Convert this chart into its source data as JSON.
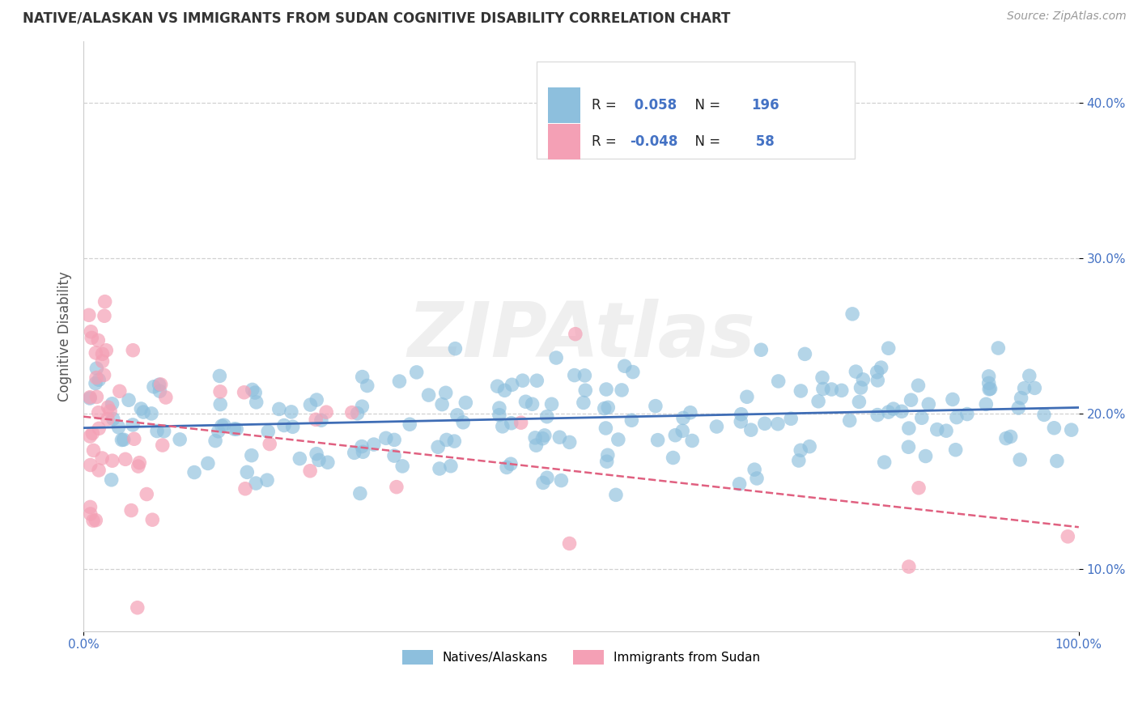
{
  "title": "NATIVE/ALASKAN VS IMMIGRANTS FROM SUDAN COGNITIVE DISABILITY CORRELATION CHART",
  "source": "Source: ZipAtlas.com",
  "ylabel": "Cognitive Disability",
  "xlim": [
    0.0,
    1.0
  ],
  "ylim": [
    0.06,
    0.44
  ],
  "yticks": [
    0.1,
    0.2,
    0.3,
    0.4
  ],
  "ytick_labels": [
    "10.0%",
    "20.0%",
    "30.0%",
    "40.0%"
  ],
  "xtick_labels": [
    "0.0%",
    "100.0%"
  ],
  "native_color": "#8DBFDD",
  "native_color_line": "#3F6DB5",
  "immigrant_color": "#F4A0B5",
  "immigrant_color_line": "#E06080",
  "native_R": 0.058,
  "native_N": 196,
  "immigrant_R": -0.048,
  "immigrant_N": 58,
  "legend_label_1": "Natives/Alaskans",
  "legend_label_2": "Immigrants from Sudan",
  "title_fontsize": 12,
  "source_fontsize": 10,
  "tick_fontsize": 11,
  "ylabel_fontsize": 12
}
